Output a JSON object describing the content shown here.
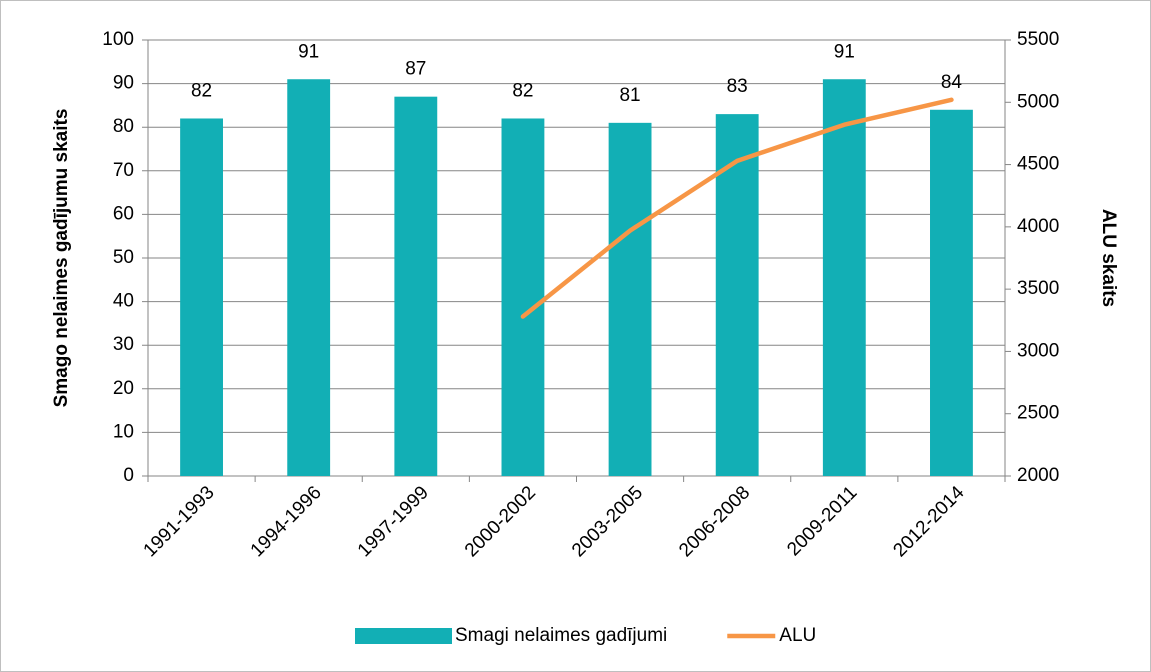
{
  "chart_data": {
    "type": "combo",
    "categories": [
      "1991-1993",
      "1994-1996",
      "1997-1999",
      "2000-2002",
      "2003-2005",
      "2006-2008",
      "2009-2011",
      "2012-2014"
    ],
    "series": [
      {
        "name": "Smagi nelaimes gadījumi",
        "type": "bar",
        "color": "#12afb5",
        "values": [
          82,
          91,
          87,
          82,
          81,
          83,
          91,
          84
        ]
      },
      {
        "name": "ALU",
        "type": "line",
        "axis": "y2",
        "color": "#f79646",
        "values": [
          null,
          null,
          null,
          3280,
          3970,
          4530,
          4820,
          5020
        ]
      }
    ],
    "ylabel": "Smago nelaimes gadījumu skaits",
    "y2label": "ALU skaits",
    "ylim": [
      0,
      100
    ],
    "yticks": [
      0,
      10,
      20,
      30,
      40,
      50,
      60,
      70,
      80,
      90,
      100
    ],
    "y2lim": [
      2000,
      5500
    ],
    "y2ticks": [
      2000,
      2500,
      3000,
      3500,
      4000,
      4500,
      5000,
      5500
    ],
    "grid": true,
    "legend": "bottom"
  }
}
